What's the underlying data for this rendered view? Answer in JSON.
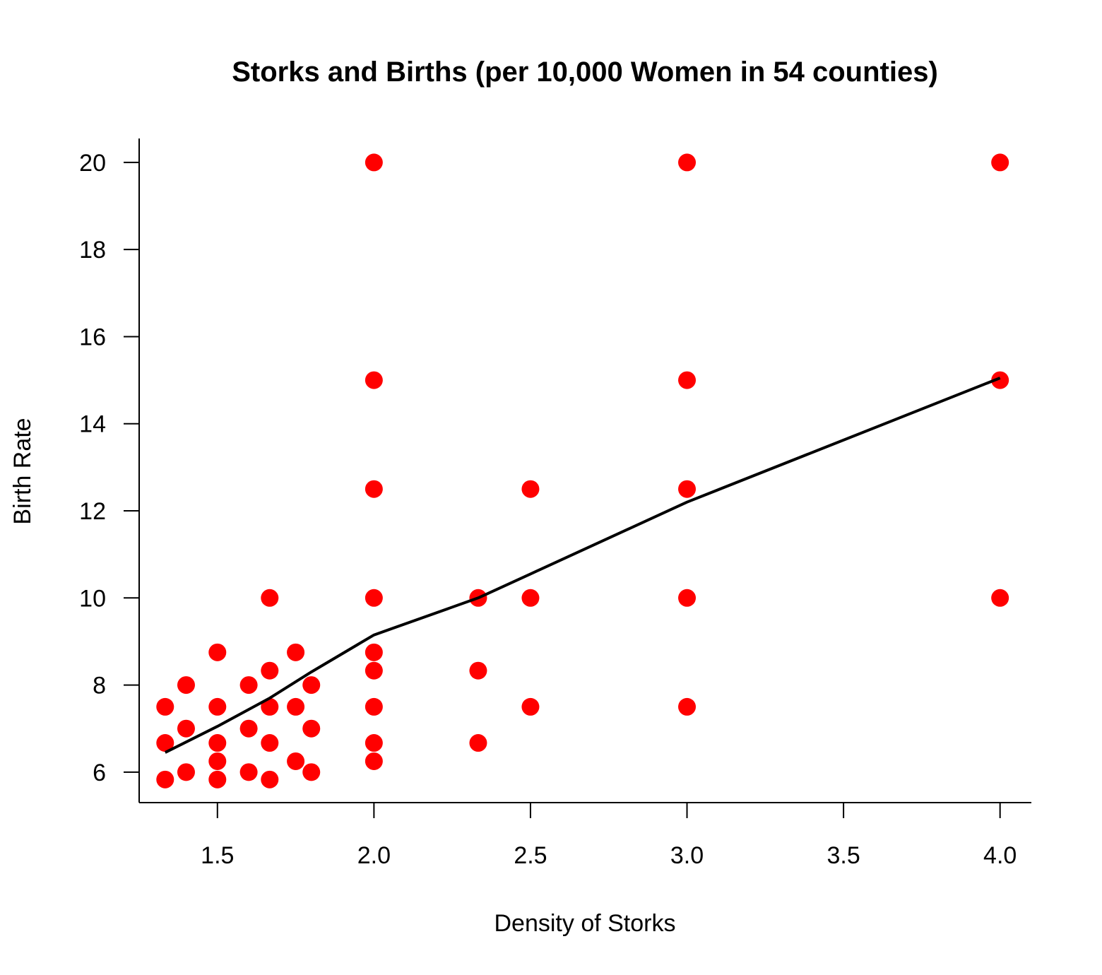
{
  "chart_data": {
    "type": "scatter",
    "title": "Storks and Births (per 10,000 Women in 54 counties)",
    "xlabel": "Density of Storks",
    "ylabel": "Birth Rate",
    "xlim": [
      1.25,
      4.1
    ],
    "ylim": [
      5.3,
      20.55
    ],
    "xticks": [
      "1.5",
      "2.0",
      "2.5",
      "3.0",
      "3.5",
      "4.0"
    ],
    "yticks": [
      "6",
      "8",
      "10",
      "12",
      "14",
      "16",
      "18",
      "20"
    ],
    "grid": false,
    "colors": {
      "points": "#ff0000",
      "line": "#000000"
    },
    "series": [
      {
        "type": "scatter",
        "points": [
          [
            1.333,
            7.5
          ],
          [
            1.333,
            6.67
          ],
          [
            1.333,
            5.83
          ],
          [
            1.4,
            8.0
          ],
          [
            1.4,
            7.0
          ],
          [
            1.4,
            6.0
          ],
          [
            1.5,
            8.75
          ],
          [
            1.5,
            7.5
          ],
          [
            1.5,
            6.67
          ],
          [
            1.5,
            6.25
          ],
          [
            1.5,
            5.83
          ],
          [
            1.6,
            8.0
          ],
          [
            1.6,
            7.0
          ],
          [
            1.6,
            6.0
          ],
          [
            1.667,
            10.0
          ],
          [
            1.667,
            8.33
          ],
          [
            1.667,
            7.5
          ],
          [
            1.667,
            6.67
          ],
          [
            1.667,
            5.83
          ],
          [
            1.75,
            8.75
          ],
          [
            1.75,
            7.5
          ],
          [
            1.75,
            6.25
          ],
          [
            1.8,
            8.0
          ],
          [
            1.8,
            7.0
          ],
          [
            1.8,
            6.0
          ],
          [
            2.0,
            20.0
          ],
          [
            2.0,
            15.0
          ],
          [
            2.0,
            12.5
          ],
          [
            2.0,
            10.0
          ],
          [
            2.0,
            8.75
          ],
          [
            2.0,
            8.33
          ],
          [
            2.0,
            7.5
          ],
          [
            2.0,
            6.67
          ],
          [
            2.0,
            6.25
          ],
          [
            2.333,
            10.0
          ],
          [
            2.333,
            8.33
          ],
          [
            2.333,
            6.67
          ],
          [
            2.5,
            12.5
          ],
          [
            2.5,
            10.0
          ],
          [
            2.5,
            7.5
          ],
          [
            3.0,
            20.0
          ],
          [
            3.0,
            15.0
          ],
          [
            3.0,
            12.5
          ],
          [
            3.0,
            10.0
          ],
          [
            3.0,
            7.5
          ],
          [
            4.0,
            20.0
          ],
          [
            4.0,
            15.0
          ],
          [
            4.0,
            10.0
          ]
        ]
      },
      {
        "type": "line",
        "points": [
          [
            1.333,
            6.45
          ],
          [
            1.5,
            7.05
          ],
          [
            1.667,
            7.7
          ],
          [
            1.8,
            8.3
          ],
          [
            2.0,
            9.15
          ],
          [
            2.333,
            10.0
          ],
          [
            2.5,
            10.55
          ],
          [
            3.0,
            12.2
          ],
          [
            4.0,
            15.05
          ]
        ]
      }
    ]
  }
}
